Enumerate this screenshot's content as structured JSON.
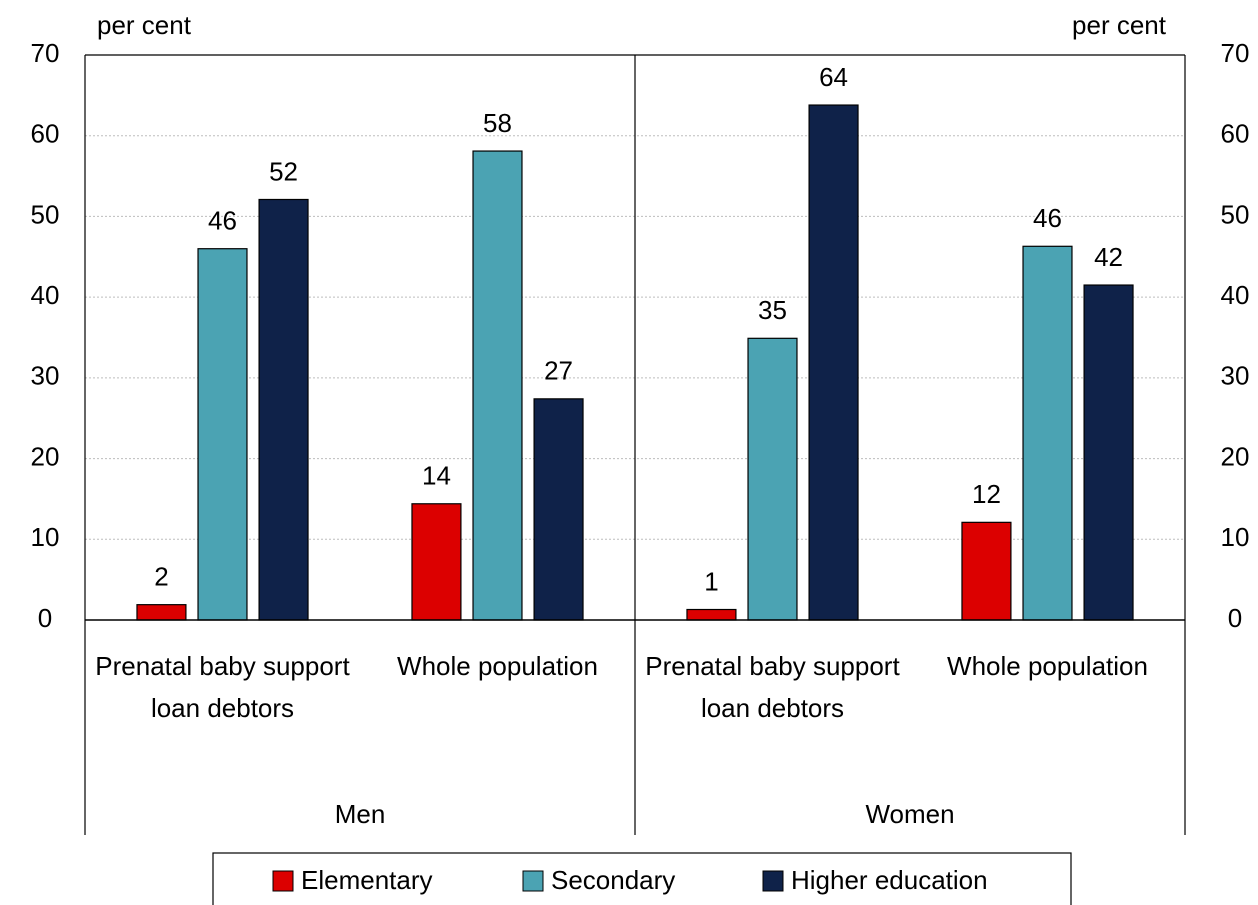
{
  "chart_data": {
    "type": "bar",
    "y_label": "per cent",
    "y2_label": "per cent",
    "categories": [
      "Prenatal baby support loan debtors",
      "Whole population",
      "Prenatal baby support loan debtors",
      "Whole population"
    ],
    "category_groups": [
      "Men",
      "Women"
    ],
    "series": [
      {
        "name": "Elementary",
        "color": "#dc0000",
        "values": [
          1.9,
          14.4,
          1.3,
          12.1
        ],
        "value_labels": [
          "2",
          "14",
          "1",
          "12"
        ]
      },
      {
        "name": "Secondary",
        "color": "#4ba3b3",
        "values": [
          46,
          58.1,
          34.9,
          46.3
        ],
        "value_labels": [
          "46",
          "58",
          "35",
          "46"
        ]
      },
      {
        "name": "Higher education",
        "color": "#0f2249",
        "values": [
          52.1,
          27.4,
          63.8,
          41.5
        ],
        "value_labels": [
          "52",
          "27",
          "64",
          "42"
        ]
      }
    ],
    "ylim": [
      0,
      70
    ],
    "yticks": [
      0,
      10,
      20,
      30,
      40,
      50,
      60,
      70
    ],
    "y2lim": [
      0,
      70
    ],
    "y2ticks": [
      0,
      10,
      20,
      30,
      40,
      50,
      60,
      70
    ],
    "grid": true,
    "legend": "bottom"
  }
}
